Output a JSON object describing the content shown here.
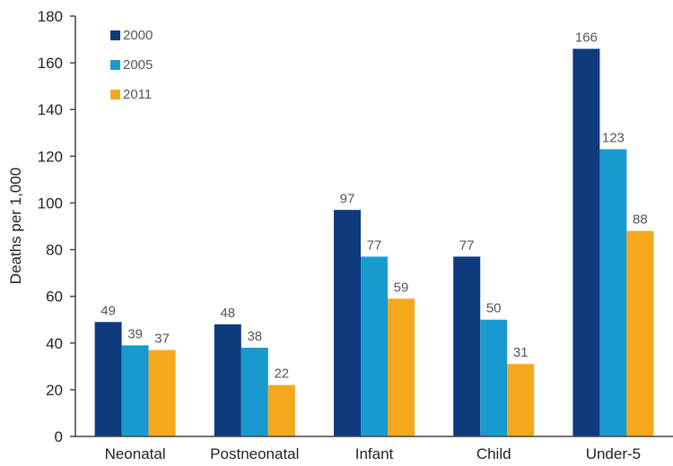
{
  "chart_data": {
    "type": "bar",
    "title": "",
    "xlabel": "",
    "ylabel": "Deaths per 1,000",
    "ylim": [
      0,
      180
    ],
    "yticks": [
      0,
      20,
      40,
      60,
      80,
      100,
      120,
      140,
      160,
      180
    ],
    "grid": false,
    "legend_position": "top-left",
    "categories": [
      "Neonatal",
      "Postneonatal",
      "Infant",
      "Child",
      "Under-5"
    ],
    "series": [
      {
        "name": "2000",
        "color": "#0e3a7e",
        "values": [
          49,
          48,
          97,
          77,
          166
        ]
      },
      {
        "name": "2005",
        "color": "#1a9bd0",
        "values": [
          39,
          38,
          77,
          50,
          123
        ]
      },
      {
        "name": "2011",
        "color": "#f5a81c",
        "values": [
          37,
          22,
          59,
          31,
          88
        ]
      }
    ]
  }
}
